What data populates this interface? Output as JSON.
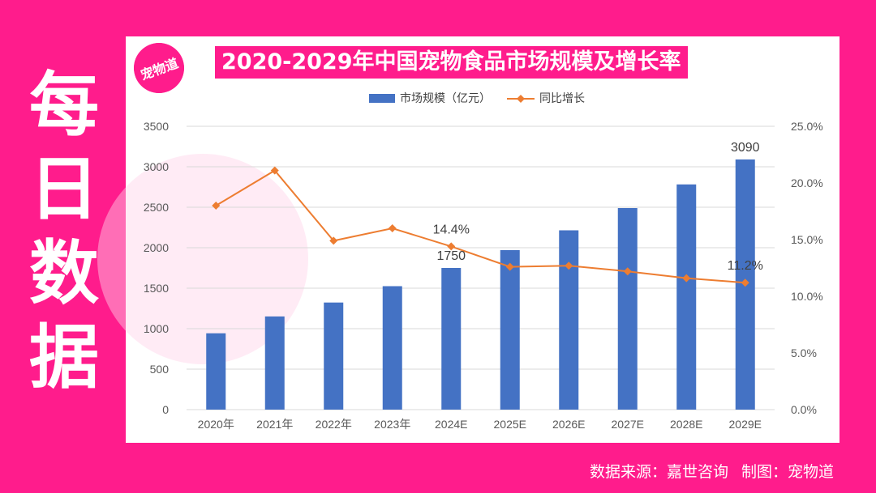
{
  "side_title": [
    "每",
    "日",
    "数",
    "据"
  ],
  "logo": {
    "text": "宠物道"
  },
  "footer": {
    "source": "数据来源：嘉世咨询",
    "maker": "制图：宠物道"
  },
  "colors": {
    "background": "#FF1C8C",
    "bar": "#4472C4",
    "line": "#ED7D31"
  },
  "chart_data": {
    "type": "bar",
    "title": "2020-2029年中国宠物食品市场规模及增长率",
    "categories": [
      "2020年",
      "2021年",
      "2022年",
      "2023年",
      "2024E",
      "2025E",
      "2026E",
      "2027E",
      "2028E",
      "2029E"
    ],
    "series": [
      {
        "name": "市场规模（亿元）",
        "type": "bar",
        "axis": "left",
        "values": [
          943,
          1151,
          1323,
          1525,
          1750,
          1970,
          2215,
          2490,
          2782,
          3090
        ]
      },
      {
        "name": "同比增长",
        "type": "line",
        "axis": "right",
        "values": [
          18.0,
          21.1,
          14.9,
          16.0,
          14.4,
          12.6,
          12.7,
          12.2,
          11.6,
          11.2
        ]
      }
    ],
    "left_axis": {
      "ylim": [
        0,
        3500
      ],
      "ticks": [
        "0",
        "500",
        "1000",
        "1500",
        "2000",
        "2500",
        "3000",
        "3500"
      ]
    },
    "right_axis": {
      "ylim": [
        0,
        25
      ],
      "ticks": [
        "0.0%",
        "5.0%",
        "10.0%",
        "15.0%",
        "20.0%",
        "25.0%"
      ]
    },
    "data_labels": [
      {
        "series": 0,
        "index": 4,
        "text": "1750"
      },
      {
        "series": 0,
        "index": 9,
        "text": "3090"
      },
      {
        "series": 1,
        "index": 4,
        "text": "14.4%"
      },
      {
        "series": 1,
        "index": 9,
        "text": "11.2%"
      }
    ],
    "legend": "top",
    "grid": true
  }
}
